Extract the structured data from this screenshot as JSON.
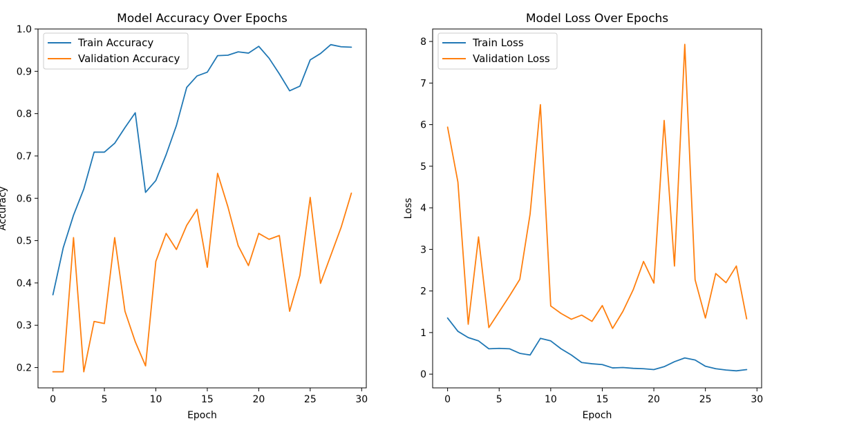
{
  "chart_data": [
    {
      "type": "line",
      "title": "Model Accuracy Over Epochs",
      "xlabel": "Epoch",
      "ylabel": "Accuracy",
      "xlim": [
        -1.45,
        30.45
      ],
      "ylim": [
        0.152,
        1.0
      ],
      "xticks": [
        0,
        5,
        10,
        15,
        20,
        25,
        30
      ],
      "yticks": [
        0.2,
        0.3,
        0.4,
        0.5,
        0.6,
        0.7,
        0.8,
        0.9,
        1.0
      ],
      "ytick_labels": [
        "0.2",
        "0.3",
        "0.4",
        "0.5",
        "0.6",
        "0.7",
        "0.8",
        "0.9",
        "1.0"
      ],
      "legend_position": "top-left",
      "x": [
        0,
        1,
        2,
        3,
        4,
        5,
        6,
        7,
        8,
        9,
        10,
        11,
        12,
        13,
        14,
        15,
        16,
        17,
        18,
        19,
        20,
        21,
        22,
        23,
        24,
        25,
        26,
        27,
        28,
        29
      ],
      "series": [
        {
          "name": "Train Accuracy",
          "color": "#1f77b4",
          "values": [
            0.372,
            0.483,
            0.56,
            0.622,
            0.709,
            0.709,
            0.73,
            0.767,
            0.802,
            0.614,
            0.642,
            0.703,
            0.772,
            0.862,
            0.889,
            0.898,
            0.937,
            0.938,
            0.946,
            0.943,
            0.959,
            0.931,
            0.894,
            0.854,
            0.865,
            0.927,
            0.942,
            0.963,
            0.958,
            0.957
          ]
        },
        {
          "name": "Validation Accuracy",
          "color": "#ff7f0e",
          "values": [
            0.19,
            0.19,
            0.507,
            0.19,
            0.309,
            0.304,
            0.507,
            0.333,
            0.261,
            0.204,
            0.451,
            0.517,
            0.479,
            0.536,
            0.574,
            0.437,
            0.659,
            0.58,
            0.488,
            0.441,
            0.517,
            0.503,
            0.512,
            0.333,
            0.418,
            0.602,
            0.399,
            0.465,
            0.531,
            0.612
          ]
        }
      ]
    },
    {
      "type": "line",
      "title": "Model Loss Over Epochs",
      "xlabel": "Epoch",
      "ylabel": "Loss",
      "xlim": [
        -1.45,
        30.45
      ],
      "ylim": [
        -0.33,
        8.3
      ],
      "xticks": [
        0,
        5,
        10,
        15,
        20,
        25,
        30
      ],
      "yticks": [
        0,
        1,
        2,
        3,
        4,
        5,
        6,
        7,
        8
      ],
      "ytick_labels": [
        "0",
        "1",
        "2",
        "3",
        "4",
        "5",
        "6",
        "7",
        "8"
      ],
      "legend_position": "top-left",
      "x": [
        0,
        1,
        2,
        3,
        4,
        5,
        6,
        7,
        8,
        9,
        10,
        11,
        12,
        13,
        14,
        15,
        16,
        17,
        18,
        19,
        20,
        21,
        22,
        23,
        24,
        25,
        26,
        27,
        28,
        29
      ],
      "series": [
        {
          "name": "Train Loss",
          "color": "#1f77b4",
          "values": [
            1.35,
            1.03,
            0.88,
            0.8,
            0.61,
            0.62,
            0.61,
            0.5,
            0.46,
            0.86,
            0.8,
            0.61,
            0.46,
            0.28,
            0.25,
            0.23,
            0.15,
            0.16,
            0.14,
            0.13,
            0.11,
            0.18,
            0.3,
            0.39,
            0.34,
            0.19,
            0.13,
            0.1,
            0.08,
            0.11
          ]
        },
        {
          "name": "Validation Loss",
          "color": "#ff7f0e",
          "values": [
            5.94,
            4.62,
            1.2,
            3.3,
            1.12,
            1.5,
            1.88,
            2.28,
            3.85,
            6.48,
            1.64,
            1.46,
            1.32,
            1.42,
            1.27,
            1.65,
            1.1,
            1.51,
            2.03,
            2.71,
            2.19,
            6.1,
            2.6,
            7.93,
            2.27,
            1.35,
            2.42,
            2.2,
            2.6,
            1.33
          ]
        }
      ]
    }
  ]
}
